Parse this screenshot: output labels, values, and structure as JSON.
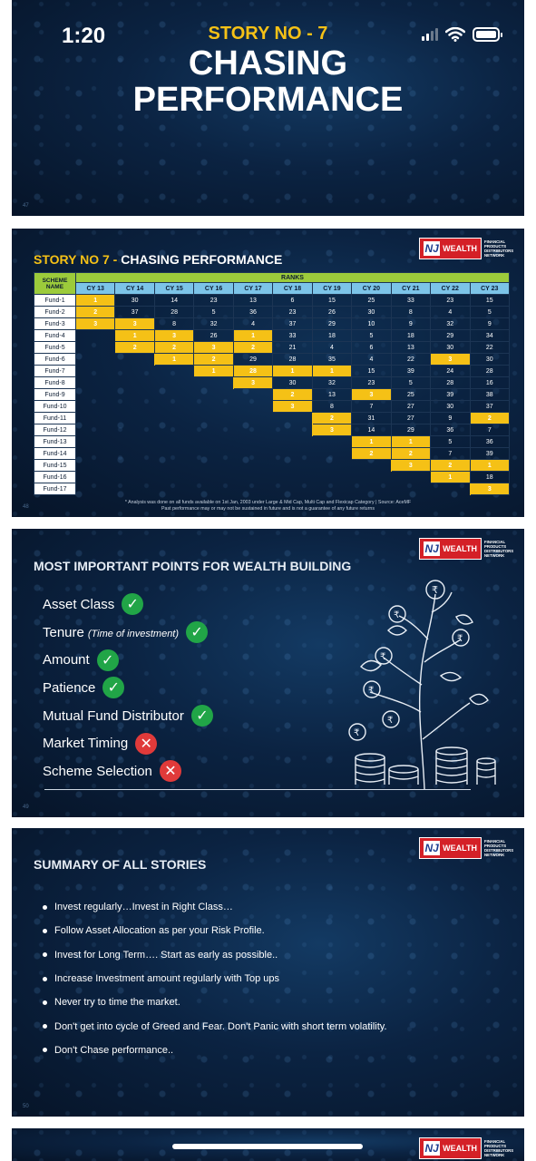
{
  "status_bar": {
    "time": "1:20"
  },
  "slide1": {
    "kicker": "STORY NO - 7",
    "title_line1": "CHASING",
    "title_line2": "PERFORMANCE",
    "slide_number": "47"
  },
  "logo": {
    "brand": "NJ",
    "wealth": "WEALTH",
    "sub": "FINANCIAL PRODUCTS DISTRIBUTORS NETWORK"
  },
  "slide2": {
    "title_prefix": "STORY NO 7 - ",
    "title_main": "CHASING PERFORMANCE",
    "scheme_header": "SCHEME NAME",
    "ranks_header": "RANKS",
    "years": [
      "CY 13",
      "CY 14",
      "CY 15",
      "CY 16",
      "CY 17",
      "CY 18",
      "CY 19",
      "CY 20",
      "CY 21",
      "CY 22",
      "CY 23"
    ],
    "rows": [
      {
        "fund": "Fund-1",
        "vals": [
          "1",
          "30",
          "14",
          "23",
          "13",
          "6",
          "15",
          "25",
          "33",
          "23",
          "15"
        ]
      },
      {
        "fund": "Fund-2",
        "vals": [
          "2",
          "37",
          "28",
          "5",
          "36",
          "23",
          "26",
          "30",
          "8",
          "4",
          "5"
        ]
      },
      {
        "fund": "Fund-3",
        "vals": [
          "3",
          "3",
          "8",
          "32",
          "4",
          "37",
          "29",
          "10",
          "9",
          "32",
          "9"
        ]
      },
      {
        "fund": "Fund-4",
        "vals": [
          "",
          "1",
          "3",
          "26",
          "1",
          "33",
          "18",
          "5",
          "18",
          "29",
          "34"
        ]
      },
      {
        "fund": "Fund-5",
        "vals": [
          "",
          "2",
          "2",
          "3",
          "2",
          "21",
          "4",
          "6",
          "13",
          "30",
          "22"
        ]
      },
      {
        "fund": "Fund-6",
        "vals": [
          "",
          "",
          "1",
          "2",
          "29",
          "28",
          "35",
          "4",
          "22",
          "3",
          "30"
        ]
      },
      {
        "fund": "Fund-7",
        "vals": [
          "",
          "",
          "",
          "1",
          "28",
          "1",
          "1",
          "15",
          "39",
          "24",
          "28"
        ]
      },
      {
        "fund": "Fund-8",
        "vals": [
          "",
          "",
          "",
          "",
          "3",
          "30",
          "32",
          "23",
          "5",
          "28",
          "16"
        ]
      },
      {
        "fund": "Fund-9",
        "vals": [
          "",
          "",
          "",
          "",
          "",
          "2",
          "13",
          "3",
          "25",
          "39",
          "38"
        ]
      },
      {
        "fund": "Fund-10",
        "vals": [
          "",
          "",
          "",
          "",
          "",
          "3",
          "8",
          "7",
          "27",
          "30",
          "37"
        ]
      },
      {
        "fund": "Fund-11",
        "vals": [
          "",
          "",
          "",
          "",
          "",
          "",
          "2",
          "31",
          "27",
          "9",
          "2"
        ]
      },
      {
        "fund": "Fund-12",
        "vals": [
          "",
          "",
          "",
          "",
          "",
          "",
          "3",
          "14",
          "29",
          "36",
          "7"
        ]
      },
      {
        "fund": "Fund-13",
        "vals": [
          "",
          "",
          "",
          "",
          "",
          "",
          "",
          "1",
          "1",
          "5",
          "36"
        ]
      },
      {
        "fund": "Fund-14",
        "vals": [
          "",
          "",
          "",
          "",
          "",
          "",
          "",
          "2",
          "2",
          "7",
          "39"
        ]
      },
      {
        "fund": "Fund-15",
        "vals": [
          "",
          "",
          "",
          "",
          "",
          "",
          "",
          "",
          "3",
          "2",
          "1"
        ]
      },
      {
        "fund": "Fund-16",
        "vals": [
          "",
          "",
          "",
          "",
          "",
          "",
          "",
          "",
          "",
          "1",
          "18"
        ]
      },
      {
        "fund": "Fund-17",
        "vals": [
          "",
          "",
          "",
          "",
          "",
          "",
          "",
          "",
          "",
          "",
          "3"
        ]
      }
    ],
    "highlights": [
      [
        0,
        0
      ],
      [
        1,
        0
      ],
      [
        2,
        0
      ],
      [
        2,
        1
      ],
      [
        3,
        1
      ],
      [
        4,
        1
      ],
      [
        3,
        2
      ],
      [
        4,
        2
      ],
      [
        5,
        2
      ],
      [
        4,
        3
      ],
      [
        5,
        3
      ],
      [
        6,
        3
      ],
      [
        3,
        4
      ],
      [
        4,
        4
      ],
      [
        6,
        4
      ],
      [
        7,
        4
      ],
      [
        6,
        5
      ],
      [
        8,
        5
      ],
      [
        9,
        5
      ],
      [
        6,
        6
      ],
      [
        10,
        6
      ],
      [
        11,
        6
      ],
      [
        8,
        7
      ],
      [
        12,
        7
      ],
      [
        13,
        7
      ],
      [
        12,
        8
      ],
      [
        13,
        8
      ],
      [
        14,
        8
      ],
      [
        5,
        9
      ],
      [
        14,
        9
      ],
      [
        15,
        9
      ],
      [
        10,
        10
      ],
      [
        14,
        10
      ],
      [
        16,
        10
      ]
    ],
    "footnote1": "* Analysis was done on all funds available on 1st Jan, 2003 under Large & Mid Cap, Multi Cap and Flexicap Category | Source: AceMF",
    "footnote2": "Past performance may or may not be sustained in future and is not a guarantee of any future returns",
    "slide_number": "48"
  },
  "slide3": {
    "title": "MOST IMPORTANT POINTS FOR WEALTH BUILDING",
    "points": [
      {
        "label": "Asset Class",
        "sub": "",
        "ok": true
      },
      {
        "label": "Tenure",
        "sub": "(Time of investment)",
        "ok": true
      },
      {
        "label": "Amount",
        "sub": "",
        "ok": true
      },
      {
        "label": "Patience",
        "sub": "",
        "ok": true
      },
      {
        "label": "Mutual Fund Distributor",
        "sub": "",
        "ok": true
      },
      {
        "label": "Market Timing",
        "sub": "",
        "ok": false
      },
      {
        "label": "Scheme Selection",
        "sub": "",
        "ok": false
      }
    ],
    "slide_number": "49",
    "illustration": "money-tree-icon"
  },
  "slide4": {
    "title": "SUMMARY OF ALL STORIES",
    "items": [
      "Invest regularly…Invest in Right Class…",
      "Follow Asset Allocation as per your Risk Profile.",
      "Invest for Long Term…. Start as early as possible..",
      "Increase Investment amount regularly with Top ups",
      "Never try to time the market.",
      "Don't get into cycle of Greed and Fear. Don't Panic with short term volatility.",
      "Don't Chase performance.."
    ],
    "slide_number": "50"
  },
  "colors": {
    "accent_yellow": "#f5c116",
    "header_green": "#9ccb3b",
    "header_blue": "#7cc4e8",
    "logo_red": "#d42027",
    "check_green": "#21a547",
    "cross_red": "#e03a3a"
  }
}
